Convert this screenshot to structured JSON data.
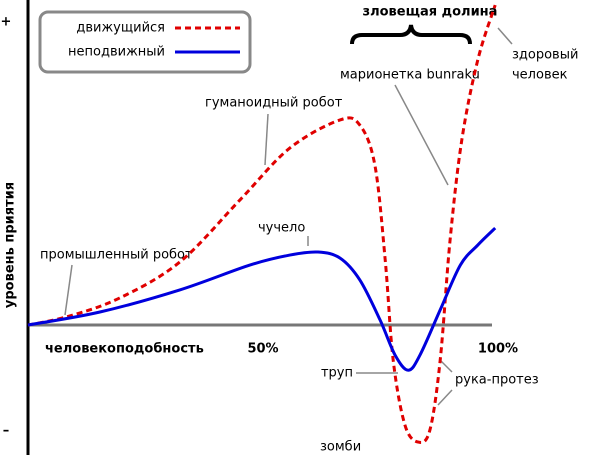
{
  "chart_data": {
    "type": "line",
    "title": "зловещая долина",
    "x_label": "человекоподобность",
    "y_label": "уровень приятия",
    "xlim": [
      0,
      100
    ],
    "ylim": [
      -40,
      110
    ],
    "xticks": [
      {
        "value": 50,
        "label": "50%"
      },
      {
        "value": 100,
        "label": "100%"
      }
    ],
    "yticks": [
      {
        "value": 100,
        "label": "+"
      },
      {
        "value": -35,
        "label": "–"
      }
    ],
    "series": [
      {
        "name": "движущийся",
        "color": "#e00000",
        "style": "dashed",
        "x": [
          0,
          8.9,
          19.6,
          32.3,
          45.1,
          55.7,
          66.4,
          70.6,
          73.8,
          76,
          77.7,
          80.2,
          83,
          85.5,
          87.7,
          89.8,
          92.3,
          95.7,
          99.4
        ],
        "values": [
          0,
          3,
          9,
          20.8,
          41.3,
          58.4,
          67.7,
          66,
          52.8,
          21.5,
          -11.6,
          -33,
          -38.6,
          -34.7,
          -11.6,
          28,
          61.1,
          87.5,
          105.6
        ]
      },
      {
        "name": "неподвижный",
        "color": "#0000dd",
        "style": "solid",
        "x": [
          0,
          15.3,
          32.3,
          47.2,
          55.7,
          61.7,
          66.4,
          70.6,
          74.9,
          78.1,
          80.9,
          83.4,
          87.7,
          92,
          95.7,
          99.4
        ],
        "values": [
          0,
          4.3,
          11.6,
          19.8,
          23.1,
          24.1,
          22.1,
          14.9,
          1.7,
          -9.9,
          -14.9,
          -9.9,
          5,
          19.8,
          26.4,
          32
        ]
      }
    ],
    "annotations": [
      "промышленный робот",
      "гуманоидный робот",
      "чучело",
      "марионетка bunraku",
      "здоровый",
      "человек",
      "труп",
      "рука-протез",
      "зомби"
    ]
  }
}
